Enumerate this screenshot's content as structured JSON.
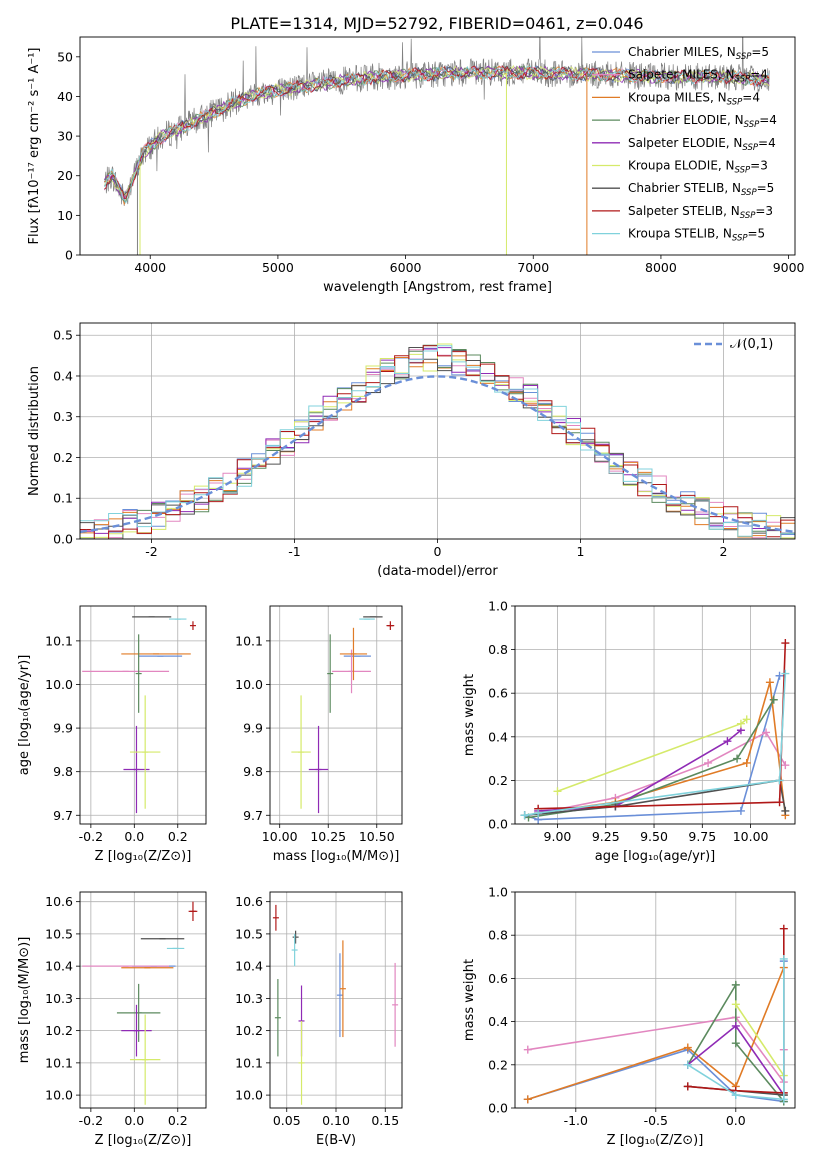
{
  "title": "PLATE=1314, MJD=52792, FIBERID=0461, z=0.046",
  "colors": {
    "ChabrierMILES": "#6a8fd8",
    "SalpeterMILES": "#e287c0",
    "KroupaMILES": "#e07b26",
    "ChabrierELODIE": "#5b8a5e",
    "SalpeterELODIE": "#8f2bb5",
    "KroupaELODIE": "#d5ea6a",
    "ChabrierSTELIB": "#505050",
    "SalpeterSTELIB": "#b01818",
    "KroupaSTELIB": "#80d2dc",
    "spectrum": "#808080",
    "grid": "#b0b0b0"
  },
  "legend_spectrum": [
    {
      "label": "Chabrier MILES, N",
      "sub": "SSP",
      "suffix": "=5",
      "color": "#6a8fd8"
    },
    {
      "label": "Salpeter MILES, N",
      "sub": "SSP",
      "suffix": "=4",
      "color": "#e287c0"
    },
    {
      "label": "Kroupa MILES, N",
      "sub": "SSP",
      "suffix": "=4",
      "color": "#e07b26"
    },
    {
      "label": "Chabrier ELODIE, N",
      "sub": "SSP",
      "suffix": "=4",
      "color": "#5b8a5e"
    },
    {
      "label": "Salpeter ELODIE, N",
      "sub": "SSP",
      "suffix": "=4",
      "color": "#8f2bb5"
    },
    {
      "label": "Kroupa ELODIE, N",
      "sub": "SSP",
      "suffix": "=3",
      "color": "#d5ea6a"
    },
    {
      "label": "Chabrier STELIB, N",
      "sub": "SSP",
      "suffix": "=5",
      "color": "#505050"
    },
    {
      "label": "Salpeter STELIB, N",
      "sub": "SSP",
      "suffix": "=3",
      "color": "#b01818"
    },
    {
      "label": "Kroupa STELIB, N",
      "sub": "SSP",
      "suffix": "=5",
      "color": "#80d2dc"
    }
  ],
  "chart_data": [
    {
      "id": "spectrum",
      "type": "line",
      "xlabel": "wavelength [Angstrom, rest frame]",
      "ylabel": "Flux [fλ10⁻¹⁷ erg cm⁻² s⁻¹ A⁻¹]",
      "xlim": [
        3450,
        9050
      ],
      "ylim": [
        0,
        55
      ],
      "xticks": [
        4000,
        5000,
        6000,
        7000,
        8000,
        9000
      ],
      "yticks": [
        0,
        10,
        20,
        30,
        40,
        50
      ],
      "legend_position": "top-right",
      "x_range_data": [
        3640,
        8850
      ],
      "continuum_model": [
        [
          3640,
          18
        ],
        [
          3700,
          20
        ],
        [
          3800,
          14
        ],
        [
          3950,
          26
        ],
        [
          4100,
          30
        ],
        [
          4300,
          33
        ],
        [
          4500,
          36
        ],
        [
          4700,
          39
        ],
        [
          4900,
          41
        ],
        [
          5100,
          42
        ],
        [
          5300,
          43
        ],
        [
          5500,
          44
        ],
        [
          5800,
          45
        ],
        [
          6100,
          45.5
        ],
        [
          6500,
          46
        ],
        [
          7000,
          46
        ],
        [
          7500,
          45.5
        ],
        [
          8000,
          45
        ],
        [
          8500,
          45
        ],
        [
          8850,
          44
        ]
      ],
      "vertical_artifacts": [
        {
          "x": 3920,
          "color": "#d5ea6a"
        },
        {
          "x": 6790,
          "color": "#d5ea6a"
        },
        {
          "x": 7420,
          "color": "#e07b26"
        },
        {
          "x": 3900,
          "color": "#808080"
        }
      ]
    },
    {
      "id": "residuals",
      "type": "histogram",
      "xlabel": "(data-model)/error",
      "ylabel": "Normed distribution",
      "xlim": [
        -2.5,
        2.5
      ],
      "ylim": [
        0,
        0.53
      ],
      "xticks": [
        -2,
        -1,
        0,
        1,
        2
      ],
      "yticks": [
        0.0,
        0.1,
        0.2,
        0.3,
        0.4,
        0.5
      ],
      "legend": [
        {
          "label": "𝒩(0,1)",
          "style": "dashed",
          "color": "#6a8fd8"
        }
      ],
      "legend_position": "top-right",
      "bin_edges_start": -2.5,
      "bin_width": 0.1,
      "bin_count": 50
    },
    {
      "id": "Z-age",
      "type": "errorbar",
      "xlabel": "Z [log₁₀(Z/Z⊙)]",
      "ylabel": "age  [log₁₀(age/yr)]",
      "xlim": [
        -0.25,
        0.33
      ],
      "ylim": [
        9.68,
        10.18
      ],
      "xticks": [
        -0.2,
        0.0,
        0.2
      ],
      "yticks": [
        9.7,
        9.8,
        9.9,
        10.0,
        10.1
      ],
      "points": [
        {
          "model": "ChabrierMILES",
          "x": 0.12,
          "xerr": 0.1,
          "y": 10.065,
          "yerr": 0.0
        },
        {
          "model": "SalpeterMILES",
          "x": -0.04,
          "xerr": 0.2,
          "y": 10.03,
          "yerr": 0.0
        },
        {
          "model": "KroupaMILES",
          "x": 0.1,
          "xerr": 0.16,
          "y": 10.07,
          "yerr": 0.0
        },
        {
          "model": "ChabrierELODIE",
          "x": 0.02,
          "xerr": 0.0,
          "y": 10.025,
          "yerr": 0.09
        },
        {
          "model": "SalpeterELODIE",
          "x": 0.01,
          "xerr": 0.06,
          "y": 9.805,
          "yerr": 0.1
        },
        {
          "model": "KroupaELODIE",
          "x": 0.05,
          "xerr": 0.07,
          "y": 9.845,
          "yerr": 0.13
        },
        {
          "model": "ChabrierSTELIB",
          "x": 0.08,
          "xerr": 0.09,
          "y": 10.155,
          "yerr": 0.0
        },
        {
          "model": "SalpeterSTELIB",
          "x": 0.27,
          "xerr": 0.0,
          "y": 10.135,
          "yerr": 0.01
        },
        {
          "model": "KroupaSTELIB",
          "x": 0.2,
          "xerr": 0.04,
          "y": 10.15,
          "yerr": 0.0
        }
      ]
    },
    {
      "id": "mass-age",
      "type": "errorbar",
      "xlabel": "mass [log₁₀(M/M⊙)]",
      "ylabel": "",
      "xlim": [
        9.95,
        10.63
      ],
      "ylim": [
        9.68,
        10.18
      ],
      "xticks": [
        10.0,
        10.25,
        10.5
      ],
      "yticks": [
        9.7,
        9.8,
        9.9,
        10.0,
        10.1
      ],
      "points": [
        {
          "model": "ChabrierMILES",
          "x": 10.4,
          "xerr": 0.07,
          "y": 10.065,
          "yerr": 0.0
        },
        {
          "model": "SalpeterMILES",
          "x": 10.37,
          "xerr": 0.1,
          "y": 10.03,
          "yerr": 0.05
        },
        {
          "model": "KroupaMILES",
          "x": 10.38,
          "xerr": 0.07,
          "y": 10.07,
          "yerr": 0.06
        },
        {
          "model": "ChabrierELODIE",
          "x": 10.26,
          "xerr": 0.0,
          "y": 10.025,
          "yerr": 0.09
        },
        {
          "model": "SalpeterELODIE",
          "x": 10.2,
          "xerr": 0.05,
          "y": 9.805,
          "yerr": 0.1
        },
        {
          "model": "KroupaELODIE",
          "x": 10.11,
          "xerr": 0.05,
          "y": 9.845,
          "yerr": 0.13
        },
        {
          "model": "ChabrierSTELIB",
          "x": 10.48,
          "xerr": 0.05,
          "y": 10.155,
          "yerr": 0.0
        },
        {
          "model": "SalpeterSTELIB",
          "x": 10.57,
          "xerr": 0.02,
          "y": 10.135,
          "yerr": 0.01
        },
        {
          "model": "KroupaSTELIB",
          "x": 10.45,
          "xerr": 0.04,
          "y": 10.15,
          "yerr": 0.0
        }
      ]
    },
    {
      "id": "age-weight",
      "type": "line",
      "xlabel": "age  [log₁₀(age/yr)]",
      "ylabel": "mass weight",
      "xlim": [
        8.78,
        10.23
      ],
      "ylim": [
        0.0,
        1.0
      ],
      "xticks": [
        9.0,
        9.25,
        9.5,
        9.75,
        10.0
      ],
      "yticks": [
        0.0,
        0.2,
        0.4,
        0.6,
        0.8,
        1.0
      ],
      "series": [
        {
          "model": "ChabrierMILES",
          "x": [
            8.83,
            8.9,
            9.95,
            10.15
          ],
          "y": [
            0.04,
            0.02,
            0.06,
            0.68
          ]
        },
        {
          "model": "SalpeterMILES",
          "x": [
            8.9,
            9.3,
            9.78,
            10.08,
            10.18
          ],
          "y": [
            0.05,
            0.12,
            0.28,
            0.42,
            0.27
          ]
        },
        {
          "model": "KroupaMILES",
          "x": [
            8.9,
            9.3,
            9.98,
            10.1,
            10.18
          ],
          "y": [
            0.05,
            0.1,
            0.28,
            0.65,
            0.04
          ]
        },
        {
          "model": "ChabrierELODIE",
          "x": [
            8.85,
            9.3,
            9.93,
            10.12
          ],
          "y": [
            0.03,
            0.09,
            0.3,
            0.57
          ]
        },
        {
          "model": "SalpeterELODIE",
          "x": [
            8.9,
            9.3,
            9.88,
            9.95
          ],
          "y": [
            0.06,
            0.08,
            0.38,
            0.43
          ]
        },
        {
          "model": "KroupaELODIE",
          "x": [
            9.0,
            9.95,
            9.98
          ],
          "y": [
            0.15,
            0.46,
            0.48
          ]
        },
        {
          "model": "ChabrierSTELIB",
          "x": [
            8.83,
            9.3,
            10.15,
            10.18
          ],
          "y": [
            0.04,
            0.08,
            0.2,
            0.06
          ]
        },
        {
          "model": "SalpeterSTELIB",
          "x": [
            8.9,
            10.15,
            10.18
          ],
          "y": [
            0.07,
            0.1,
            0.83
          ]
        },
        {
          "model": "KroupaSTELIB",
          "x": [
            8.83,
            8.9,
            10.15,
            10.18
          ],
          "y": [
            0.04,
            0.05,
            0.2,
            0.69
          ]
        }
      ]
    },
    {
      "id": "Z-mass",
      "type": "errorbar",
      "xlabel": "Z [log₁₀(Z/Z⊙)]",
      "ylabel": "mass [log₁₀(M/M⊙)]",
      "xlim": [
        -0.25,
        0.33
      ],
      "ylim": [
        9.96,
        10.63
      ],
      "xticks": [
        -0.2,
        0.0,
        0.2
      ],
      "yticks": [
        10.0,
        10.1,
        10.2,
        10.3,
        10.4,
        10.5,
        10.6
      ],
      "points": [
        {
          "model": "ChabrierMILES",
          "x": 0.09,
          "xerr": 0.1,
          "y": 10.4,
          "yerr": 0.0
        },
        {
          "model": "SalpeterMILES",
          "x": -0.04,
          "xerr": 0.2,
          "y": 10.4,
          "yerr": 0.0
        },
        {
          "model": "KroupaMILES",
          "x": 0.06,
          "xerr": 0.12,
          "y": 10.395,
          "yerr": 0.0
        },
        {
          "model": "ChabrierELODIE",
          "x": 0.02,
          "xerr": 0.1,
          "y": 10.255,
          "yerr": 0.09
        },
        {
          "model": "SalpeterELODIE",
          "x": 0.01,
          "xerr": 0.07,
          "y": 10.2,
          "yerr": 0.08
        },
        {
          "model": "KroupaELODIE",
          "x": 0.05,
          "xerr": 0.07,
          "y": 10.11,
          "yerr": 0.14
        },
        {
          "model": "ChabrierSTELIB",
          "x": 0.13,
          "xerr": 0.1,
          "y": 10.485,
          "yerr": 0.0
        },
        {
          "model": "SalpeterSTELIB",
          "x": 0.27,
          "xerr": 0.02,
          "y": 10.57,
          "yerr": 0.03
        },
        {
          "model": "KroupaSTELIB",
          "x": 0.19,
          "xerr": 0.04,
          "y": 10.455,
          "yerr": 0.0
        }
      ]
    },
    {
      "id": "ebv-mass",
      "type": "errorbar",
      "xlabel": "E(B-V)",
      "ylabel": "",
      "xlim": [
        0.033,
        0.167
      ],
      "ylim": [
        9.96,
        10.63
      ],
      "xticks": [
        0.05,
        0.1,
        0.15
      ],
      "yticks": [
        10.0,
        10.1,
        10.2,
        10.3,
        10.4,
        10.5,
        10.6
      ],
      "points": [
        {
          "model": "ChabrierMILES",
          "x": 0.104,
          "xerr": 0.0,
          "y": 10.31,
          "yerr": 0.13
        },
        {
          "model": "SalpeterMILES",
          "x": 0.16,
          "xerr": 0.0,
          "y": 10.28,
          "yerr": 0.13
        },
        {
          "model": "KroupaMILES",
          "x": 0.107,
          "xerr": 0.0,
          "y": 10.33,
          "yerr": 0.15
        },
        {
          "model": "ChabrierELODIE",
          "x": 0.041,
          "xerr": 0.0,
          "y": 10.24,
          "yerr": 0.12
        },
        {
          "model": "SalpeterELODIE",
          "x": 0.065,
          "xerr": 0.0,
          "y": 10.23,
          "yerr": 0.11
        },
        {
          "model": "KroupaELODIE",
          "x": 0.065,
          "xerr": 0.0,
          "y": 10.1,
          "yerr": 0.13
        },
        {
          "model": "ChabrierSTELIB",
          "x": 0.059,
          "xerr": 0.0,
          "y": 10.49,
          "yerr": 0.02
        },
        {
          "model": "SalpeterSTELIB",
          "x": 0.039,
          "xerr": 0.0,
          "y": 10.55,
          "yerr": 0.04
        },
        {
          "model": "KroupaSTELIB",
          "x": 0.058,
          "xerr": 0.0,
          "y": 10.45,
          "yerr": 0.05
        }
      ]
    },
    {
      "id": "Z-weight",
      "type": "line",
      "xlabel": "Z [log₁₀(Z/Z⊙)]",
      "ylabel": "mass weight",
      "xlim": [
        -1.38,
        0.37
      ],
      "ylim": [
        0.0,
        1.0
      ],
      "xticks": [
        -1.0,
        -0.5,
        0.0
      ],
      "yticks": [
        0.0,
        0.2,
        0.4,
        0.6,
        0.8,
        1.0
      ],
      "series": [
        {
          "model": "ChabrierMILES",
          "x": [
            -1.3,
            -0.3,
            0.0,
            0.3,
            0.3
          ],
          "y": [
            0.04,
            0.27,
            0.06,
            0.03,
            0.68
          ]
        },
        {
          "model": "SalpeterMILES",
          "x": [
            -1.3,
            0.0,
            0.3,
            0.3
          ],
          "y": [
            0.27,
            0.42,
            0.12,
            0.27
          ]
        },
        {
          "model": "KroupaMILES",
          "x": [
            -1.3,
            -0.3,
            0.0,
            0.3
          ],
          "y": [
            0.04,
            0.28,
            0.1,
            0.65
          ]
        },
        {
          "model": "ChabrierELODIE",
          "x": [
            -0.3,
            0.0,
            0.0,
            0.3
          ],
          "y": [
            0.2,
            0.57,
            0.3,
            0.03
          ]
        },
        {
          "model": "SalpeterELODIE",
          "x": [
            -0.3,
            0.0,
            0.3
          ],
          "y": [
            0.2,
            0.38,
            0.06
          ]
        },
        {
          "model": "KroupaELODIE",
          "x": [
            0.0,
            0.3,
            0.3
          ],
          "y": [
            0.48,
            0.15,
            0.06
          ]
        },
        {
          "model": "ChabrierSTELIB",
          "x": [
            -0.3,
            0.0,
            0.3
          ],
          "y": [
            0.1,
            0.08,
            0.06
          ]
        },
        {
          "model": "SalpeterSTELIB",
          "x": [
            -0.3,
            0.0,
            0.3,
            0.3
          ],
          "y": [
            0.1,
            0.08,
            0.07,
            0.83
          ]
        },
        {
          "model": "KroupaSTELIB",
          "x": [
            -0.3,
            0.0,
            0.3,
            0.3
          ],
          "y": [
            0.2,
            0.06,
            0.04,
            0.69
          ]
        }
      ]
    }
  ]
}
